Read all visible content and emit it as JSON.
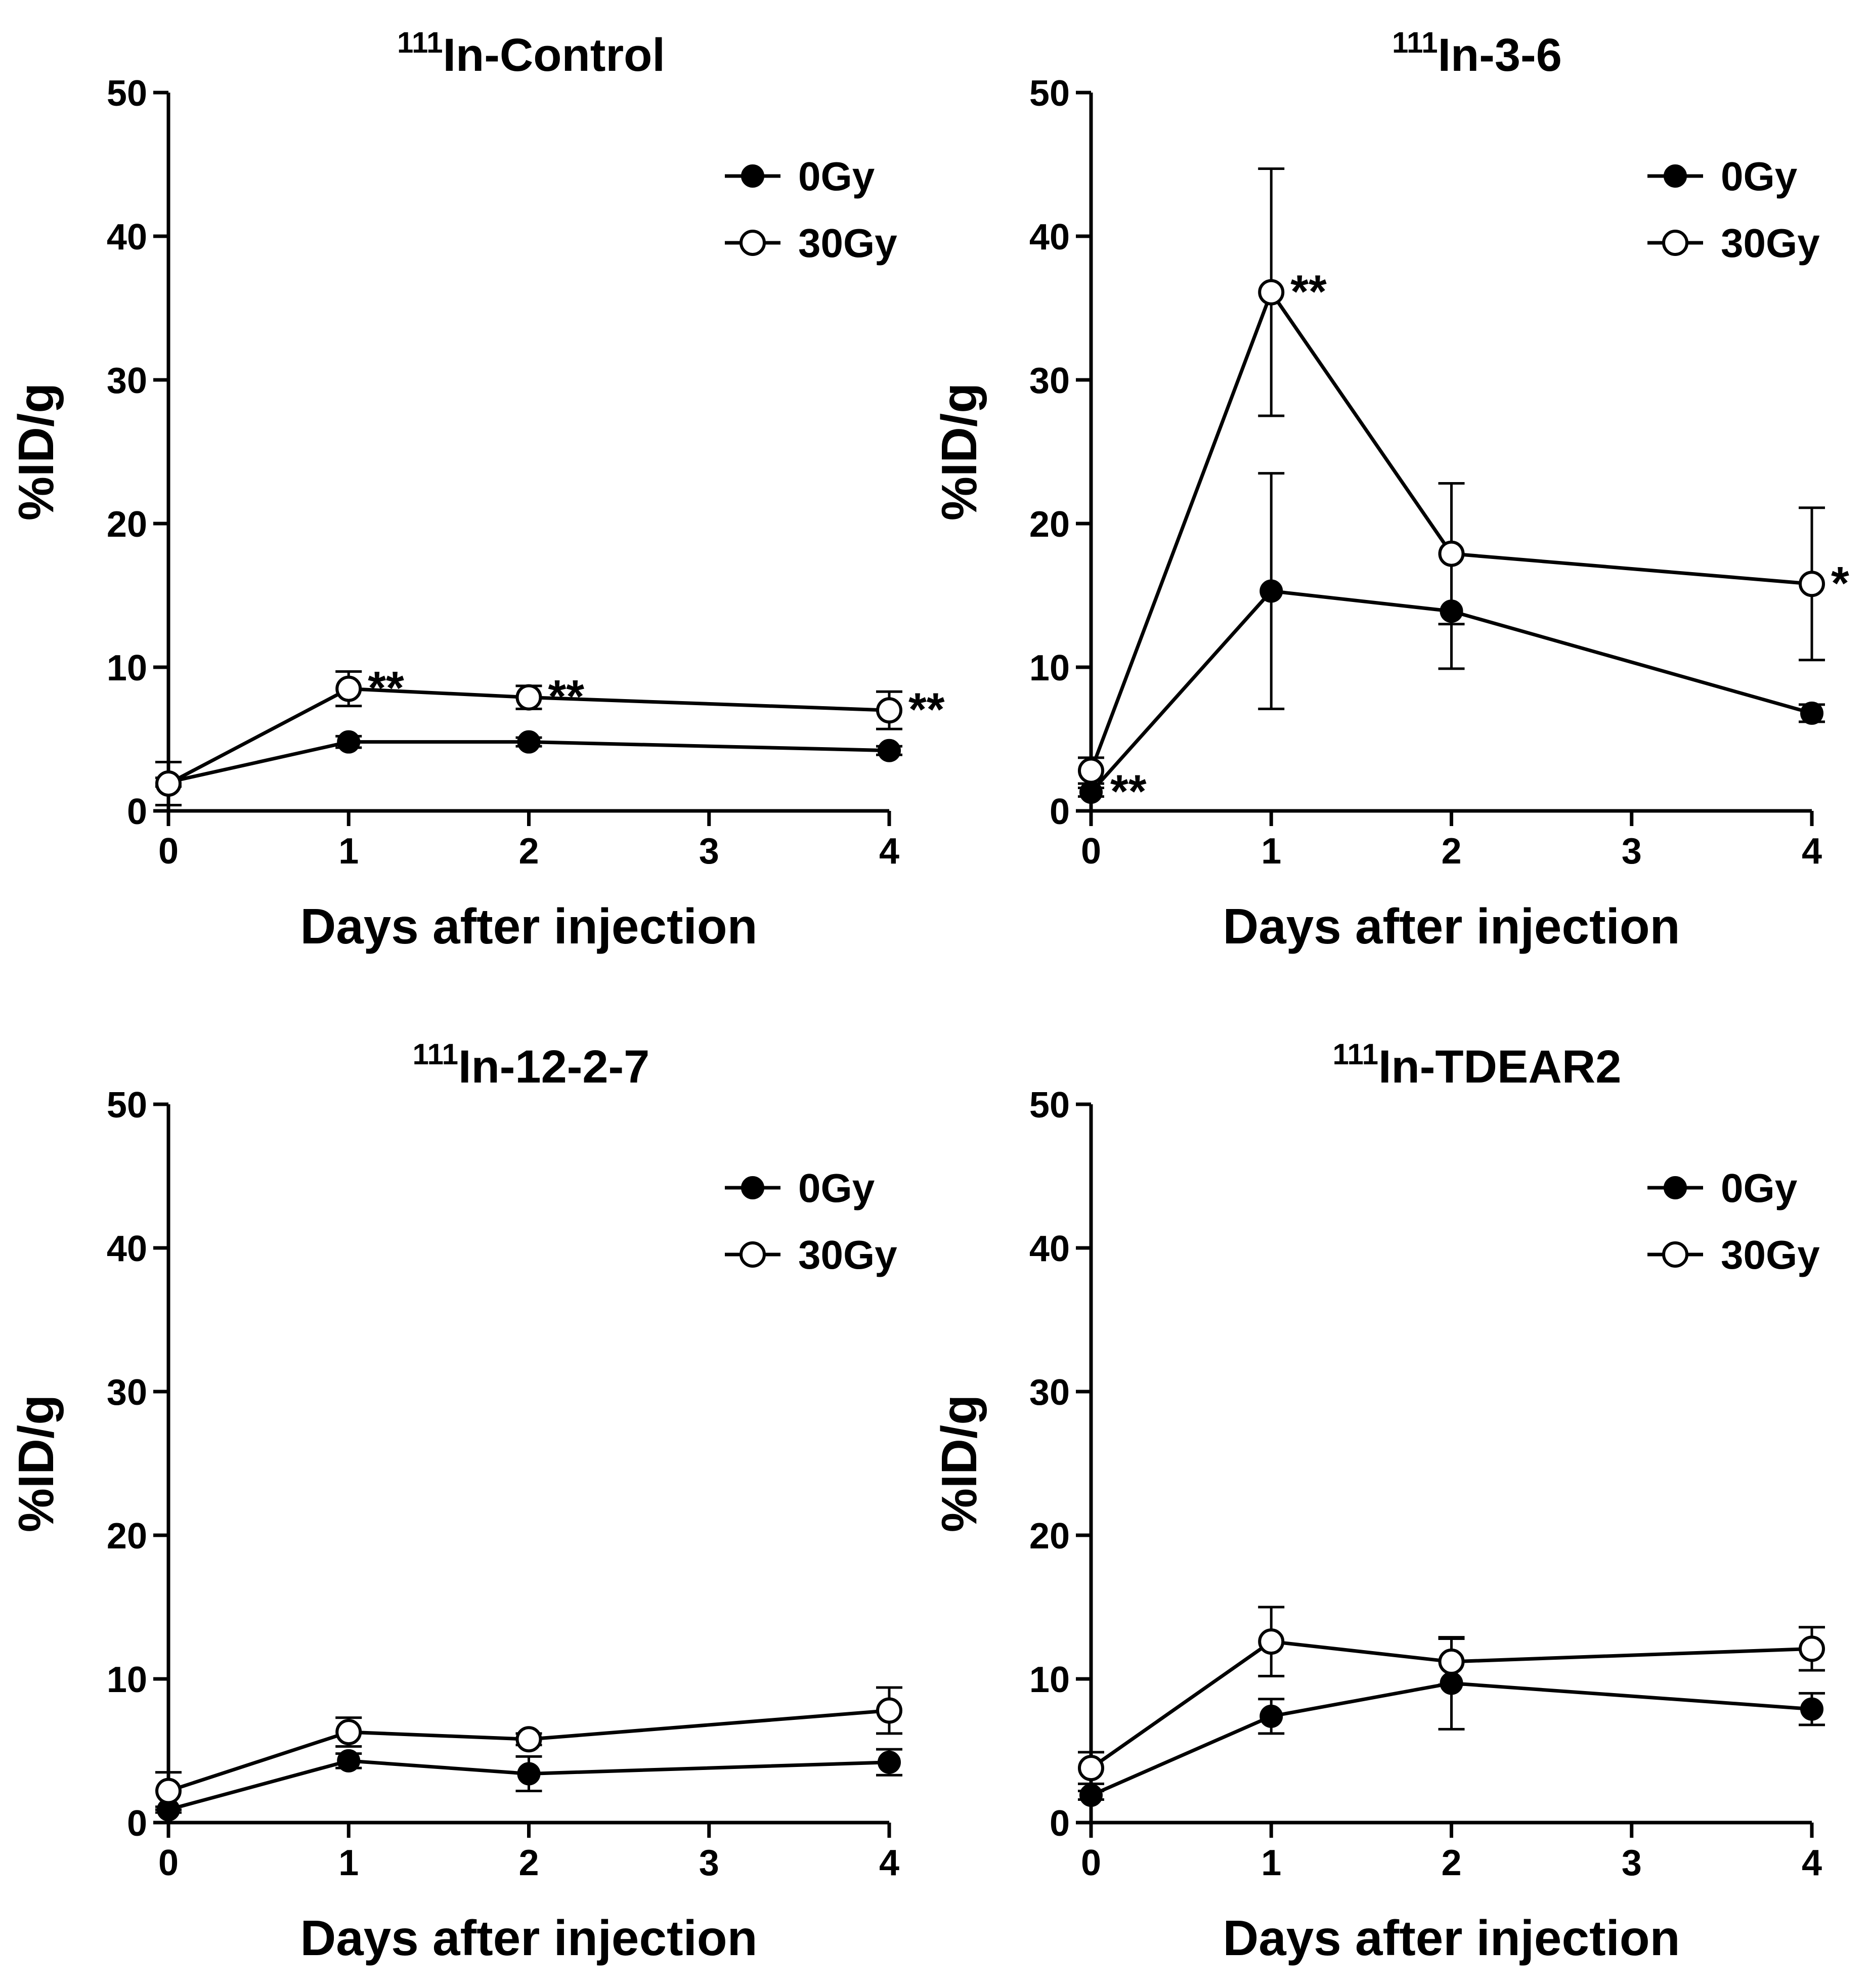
{
  "chart_data": [
    {
      "type": "line",
      "title_sup": "111",
      "title_main": "In-Control",
      "xlabel": "Days after injection",
      "ylabel": "%ID/g",
      "x": [
        0,
        1,
        2,
        4
      ],
      "xticks": [
        0,
        1,
        2,
        3,
        4
      ],
      "yticks": [
        0,
        10,
        20,
        30,
        40,
        50
      ],
      "xlim": [
        0,
        4
      ],
      "ylim": [
        0,
        50
      ],
      "grid": false,
      "legend_position": "top-right",
      "series": [
        {
          "name": "0Gy",
          "marker": "filled-circle",
          "values": [
            2.0,
            4.8,
            4.8,
            4.2
          ],
          "errors": [
            0.3,
            0.4,
            0.3,
            0.3
          ]
        },
        {
          "name": "30Gy",
          "marker": "open-circle",
          "values": [
            1.9,
            8.5,
            7.9,
            7.0
          ],
          "errors": [
            1.5,
            1.2,
            0.8,
            1.3
          ]
        }
      ],
      "annotations": [
        {
          "text": "**",
          "x": 1,
          "y": 8.5
        },
        {
          "text": "**",
          "x": 2,
          "y": 7.9
        },
        {
          "text": "**",
          "x": 4,
          "y": 7.0
        }
      ]
    },
    {
      "type": "line",
      "title_sup": "111",
      "title_main": "In-3-6",
      "xlabel": "Days after injection",
      "ylabel": "%ID/g",
      "x": [
        0,
        1,
        2,
        4
      ],
      "xticks": [
        0,
        1,
        2,
        3,
        4
      ],
      "yticks": [
        0,
        10,
        20,
        30,
        40,
        50
      ],
      "xlim": [
        0,
        4
      ],
      "ylim": [
        0,
        50
      ],
      "grid": false,
      "legend_position": "top-right",
      "series": [
        {
          "name": "0Gy",
          "marker": "filled-circle",
          "values": [
            1.3,
            15.3,
            13.9,
            6.8
          ],
          "errors": [
            0.3,
            8.2,
            4.0,
            0.6
          ]
        },
        {
          "name": "30Gy",
          "marker": "open-circle",
          "values": [
            2.8,
            36.1,
            17.9,
            15.8
          ],
          "errors": [
            0.9,
            8.6,
            4.9,
            5.3
          ]
        }
      ],
      "annotations": [
        {
          "text": "**",
          "x": 0,
          "y": 1.3
        },
        {
          "text": "**",
          "x": 1,
          "y": 36.1
        },
        {
          "text": "*",
          "x": 4,
          "y": 15.8
        }
      ]
    },
    {
      "type": "line",
      "title_sup": "111",
      "title_main": "In-12-2-7",
      "xlabel": "Days after injection",
      "ylabel": "%ID/g",
      "x": [
        0,
        1,
        2,
        4
      ],
      "xticks": [
        0,
        1,
        2,
        3,
        4
      ],
      "yticks": [
        0,
        10,
        20,
        30,
        40,
        50
      ],
      "xlim": [
        0,
        4
      ],
      "ylim": [
        0,
        50
      ],
      "grid": false,
      "legend_position": "top-right",
      "series": [
        {
          "name": "0Gy",
          "marker": "filled-circle",
          "values": [
            0.9,
            4.3,
            3.4,
            4.2
          ],
          "errors": [
            0.2,
            0.5,
            1.2,
            0.9
          ]
        },
        {
          "name": "30Gy",
          "marker": "open-circle",
          "values": [
            2.2,
            6.3,
            5.8,
            7.8
          ],
          "errors": [
            1.3,
            1.0,
            0.4,
            1.6
          ]
        }
      ],
      "annotations": []
    },
    {
      "type": "line",
      "title_sup": "111",
      "title_main": "In-TDEAR2",
      "xlabel": "Days after injection",
      "ylabel": "%ID/g",
      "x": [
        0,
        1,
        2,
        4
      ],
      "xticks": [
        0,
        1,
        2,
        3,
        4
      ],
      "yticks": [
        0,
        10,
        20,
        30,
        40,
        50
      ],
      "xlim": [
        0,
        4
      ],
      "ylim": [
        0,
        50
      ],
      "grid": false,
      "legend_position": "top-right",
      "series": [
        {
          "name": "0Gy",
          "marker": "filled-circle",
          "values": [
            1.9,
            7.4,
            9.7,
            7.9
          ],
          "errors": [
            0.3,
            1.2,
            3.2,
            1.1
          ]
        },
        {
          "name": "30Gy",
          "marker": "open-circle",
          "values": [
            3.8,
            12.6,
            11.2,
            12.1
          ],
          "errors": [
            1.1,
            2.4,
            1.6,
            1.5
          ]
        }
      ],
      "annotations": []
    }
  ]
}
